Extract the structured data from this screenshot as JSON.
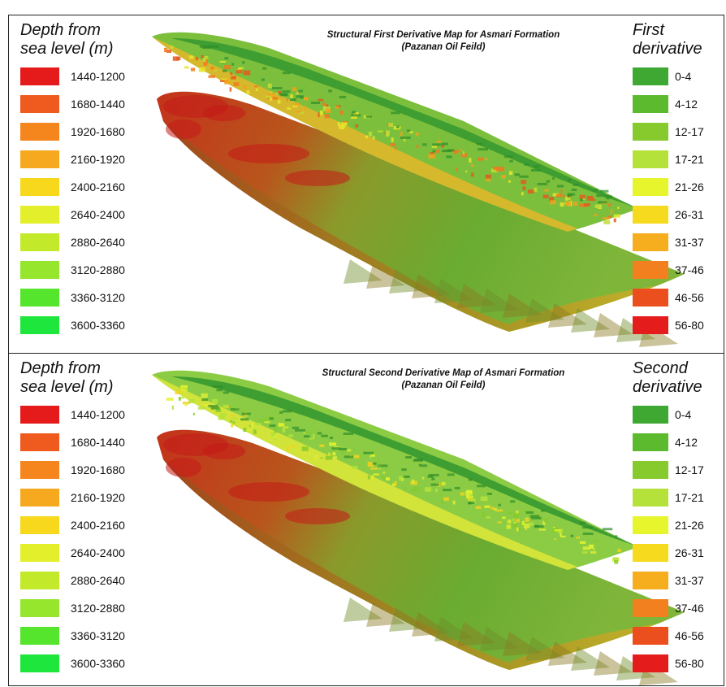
{
  "panels": [
    {
      "map_title": [
        "Structural First Derivative Map for Asmari Formation",
        "(Pazanan Oil Feild)"
      ],
      "depth_legend_title": [
        "Depth from",
        "sea level (m)"
      ],
      "derivative_legend_title": [
        "First",
        "derivative"
      ],
      "depth_classes": [
        {
          "label": "1440-1200",
          "color": "#e51a1a"
        },
        {
          "label": "1680-1440",
          "color": "#ef5a1e"
        },
        {
          "label": "1920-1680",
          "color": "#f5861e"
        },
        {
          "label": "2160-1920",
          "color": "#f6a91f"
        },
        {
          "label": "2400-2160",
          "color": "#f7d81c"
        },
        {
          "label": "2640-2400",
          "color": "#e4ef2c"
        },
        {
          "label": "2880-2640",
          "color": "#c3ea2a"
        },
        {
          "label": "3120-2880",
          "color": "#95e62c"
        },
        {
          "label": "3360-3120",
          "color": "#55e52d"
        },
        {
          "label": "3600-3360",
          "color": "#1ee63c"
        }
      ],
      "derivative_classes": [
        {
          "label": "0-4",
          "color": "#3ea832"
        },
        {
          "label": "4-12",
          "color": "#5cba2e"
        },
        {
          "label": "12-17",
          "color": "#86ca2e"
        },
        {
          "label": "17-21",
          "color": "#b5e23a"
        },
        {
          "label": "21-26",
          "color": "#e6f52c"
        },
        {
          "label": "26-31",
          "color": "#f6da1e"
        },
        {
          "label": "31-37",
          "color": "#f6ad1e"
        },
        {
          "label": "37-46",
          "color": "#f2801e"
        },
        {
          "label": "46-56",
          "color": "#ec4f1e"
        },
        {
          "label": "56-80",
          "color": "#e41c1c"
        }
      ]
    },
    {
      "map_title": [
        "Structural Second Derivative Map of Asmari Formation",
        "(Pazanan Oil Feild)"
      ],
      "depth_legend_title": [
        "Depth from",
        "sea level (m)"
      ],
      "derivative_legend_title": [
        "Second",
        "derivative"
      ],
      "depth_classes": [
        {
          "label": "1440-1200",
          "color": "#e51a1a"
        },
        {
          "label": "1680-1440",
          "color": "#ef5a1e"
        },
        {
          "label": "1920-1680",
          "color": "#f5861e"
        },
        {
          "label": "2160-1920",
          "color": "#f6a91f"
        },
        {
          "label": "2400-2160",
          "color": "#f7d81c"
        },
        {
          "label": "2640-2400",
          "color": "#e4ef2c"
        },
        {
          "label": "2880-2640",
          "color": "#c3ea2a"
        },
        {
          "label": "3120-2880",
          "color": "#95e62c"
        },
        {
          "label": "3360-3120",
          "color": "#55e52d"
        },
        {
          "label": "3600-3360",
          "color": "#1ee63c"
        }
      ],
      "derivative_classes": [
        {
          "label": "0-4",
          "color": "#3ea832"
        },
        {
          "label": "4-12",
          "color": "#5cba2e"
        },
        {
          "label": "12-17",
          "color": "#86ca2e"
        },
        {
          "label": "17-21",
          "color": "#b5e23a"
        },
        {
          "label": "21-26",
          "color": "#e6f52c"
        },
        {
          "label": "26-31",
          "color": "#f6da1e"
        },
        {
          "label": "31-37",
          "color": "#f6ad1e"
        },
        {
          "label": "37-46",
          "color": "#f2801e"
        },
        {
          "label": "46-56",
          "color": "#ec4f1e"
        },
        {
          "label": "56-80",
          "color": "#e41c1c"
        }
      ]
    }
  ]
}
